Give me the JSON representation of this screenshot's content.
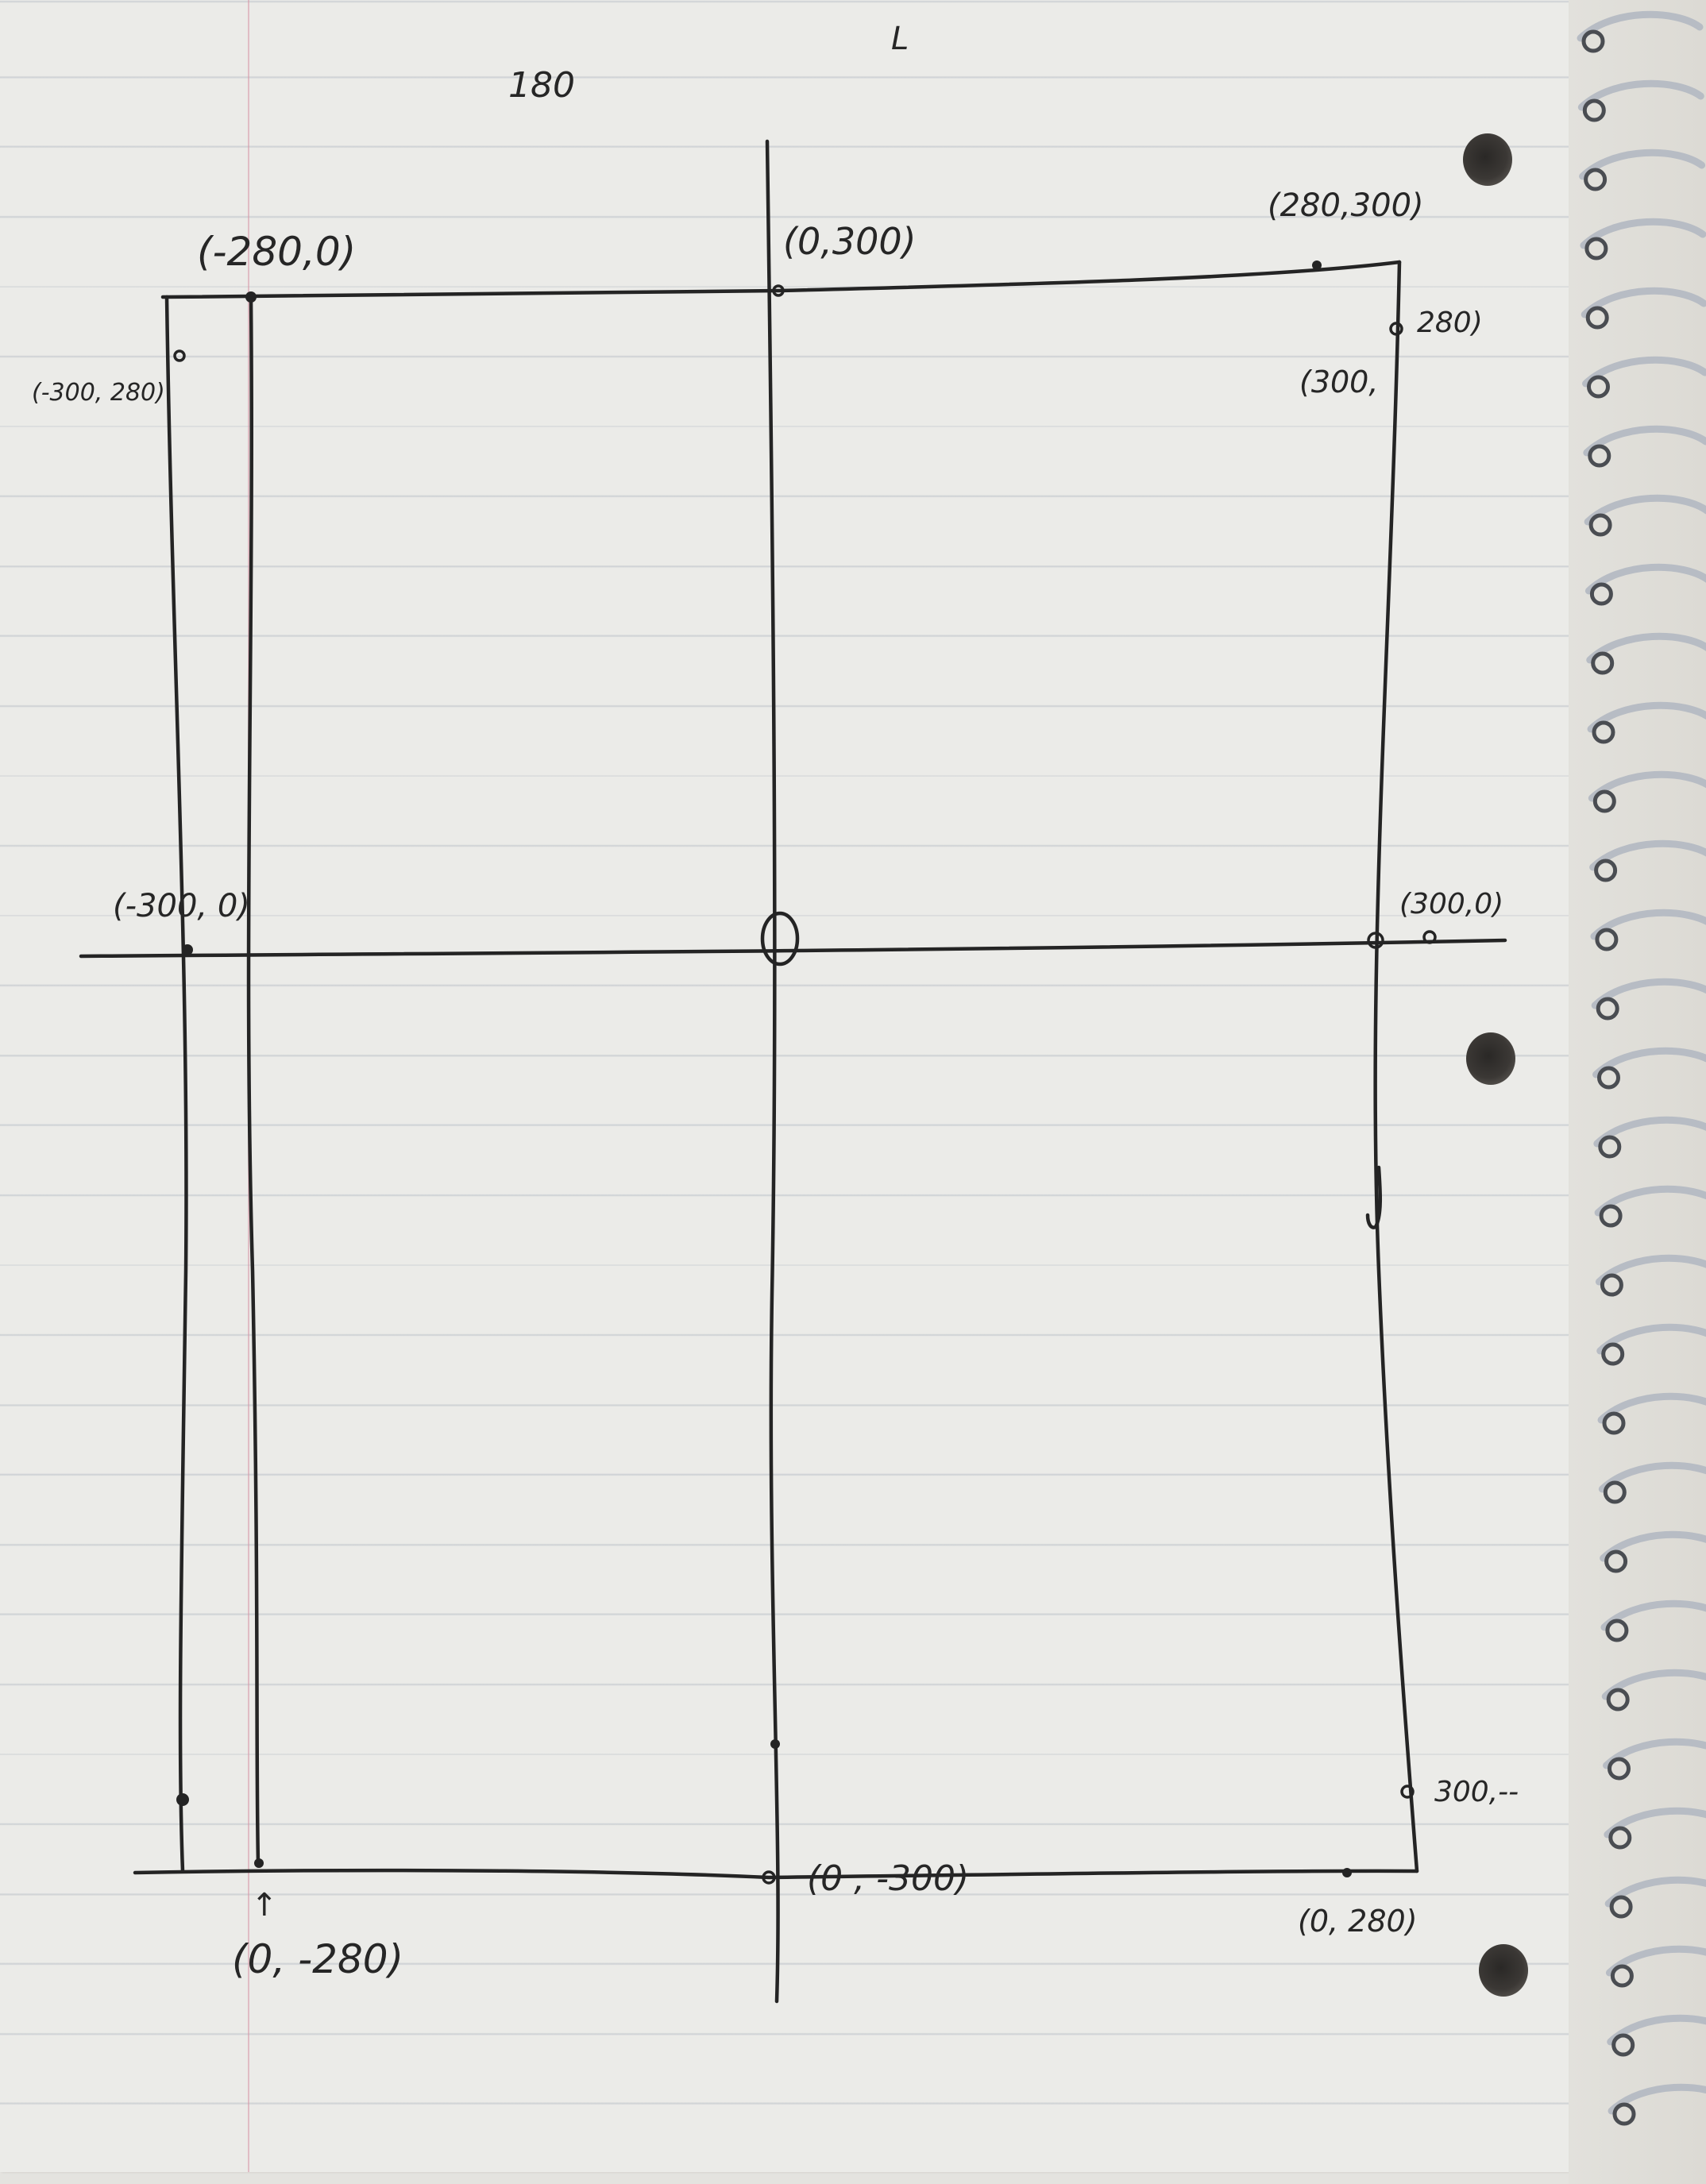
{
  "notes": {
    "top_number": "180",
    "corner_mark": "L"
  },
  "labels": {
    "top_left": "(-280,0)",
    "top_center": "(0,300)",
    "top_right": "(280,300)",
    "left_upper": "(-300, 280)",
    "right_upper_a": "280)",
    "right_upper_b": "(300,",
    "left_mid": "(-300, 0)",
    "right_mid": "(300,0)",
    "right_lower": "300,--",
    "bottom_center": "(0 , -300)",
    "bottom_right": "(0, 280)",
    "bottom_left": "(0, -280)",
    "arrow": "↑"
  },
  "colors": {
    "ink": "#242424",
    "paper": "#ebebe8",
    "rule_lines": "#96a0af",
    "margin_line": "#d796a5"
  }
}
